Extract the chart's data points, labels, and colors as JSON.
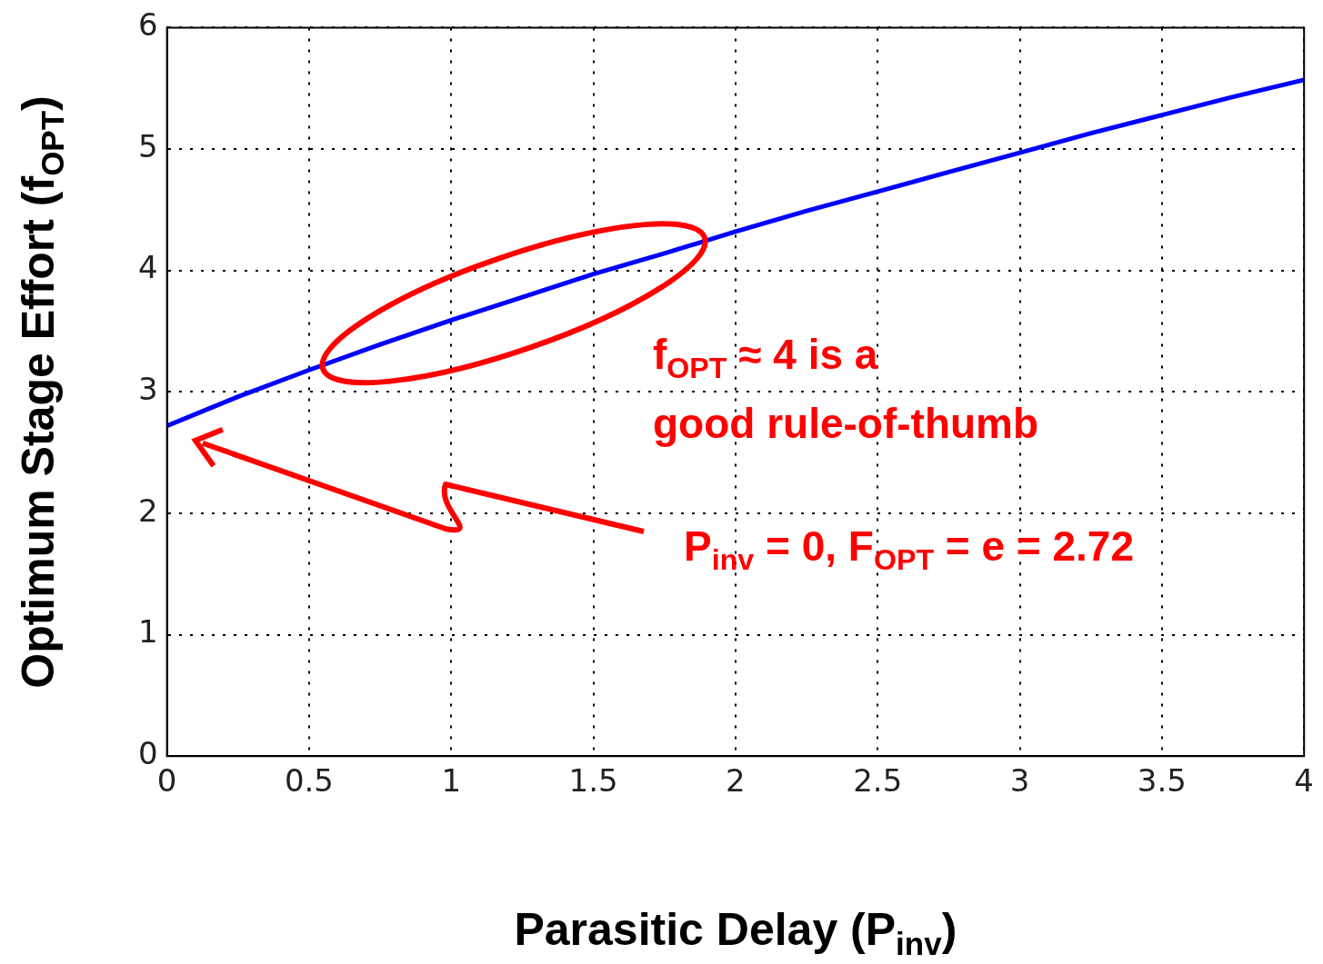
{
  "chart_data": {
    "type": "line",
    "xlabel": "Parasitic Delay (P$_{inv}$)",
    "ylabel": "Optimum Stage Effort (f$_{OPT}$)",
    "x": [
      0,
      0.25,
      0.5,
      0.75,
      1,
      1.25,
      1.5,
      1.75,
      2,
      2.25,
      2.5,
      2.75,
      3,
      3.25,
      3.5,
      3.75,
      4
    ],
    "series": [
      {
        "color": "#0000ff",
        "values": [
          2.72,
          2.96,
          3.18,
          3.39,
          3.59,
          3.78,
          3.97,
          4.14,
          4.32,
          4.49,
          4.65,
          4.81,
          4.97,
          5.13,
          5.28,
          5.43,
          5.57
        ]
      }
    ],
    "xlim": [
      0,
      4
    ],
    "xticks": [
      0,
      0.5,
      1,
      1.5,
      2,
      2.5,
      3,
      3.5,
      4
    ],
    "ylim": [
      0,
      6
    ],
    "yticks": [
      0,
      1,
      2,
      3,
      4,
      5,
      6
    ],
    "grid": true,
    "legend": false,
    "marker": "none",
    "line_style": "solid",
    "annotations": [
      "f$_{OPT}$ ≈ 4 is a\ngood rule-of-thumb",
      "P$_{inv}$ = 0, F$_{OPT}$ = e = 2.72"
    ]
  }
}
